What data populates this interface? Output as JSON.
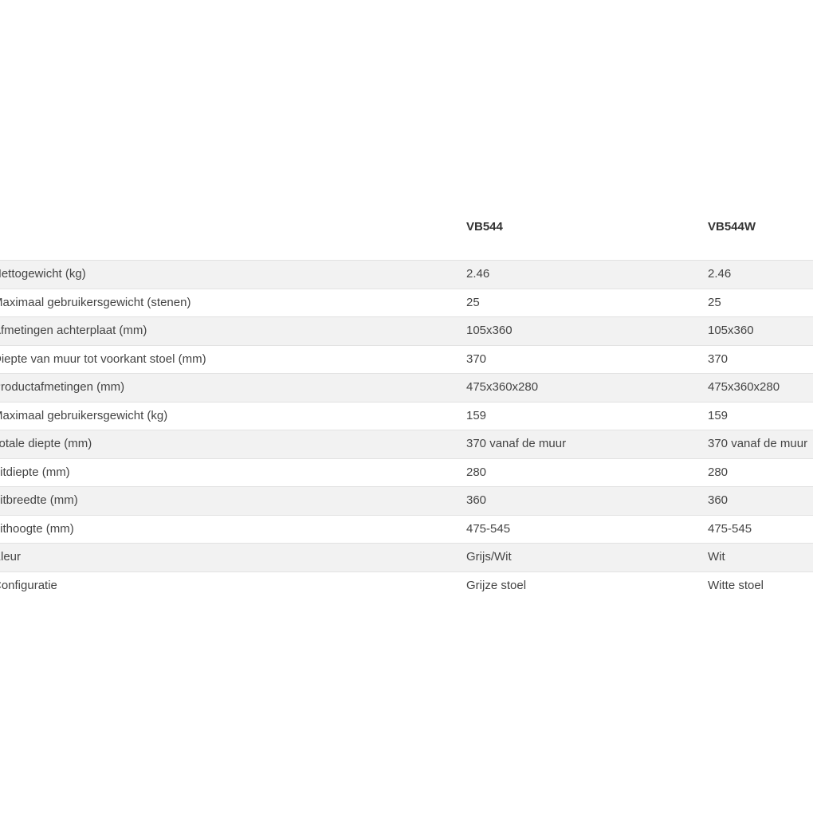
{
  "table": {
    "headers": [
      "",
      "VB544",
      "VB544W"
    ],
    "rows": [
      {
        "label": "Nettogewicht (kg)",
        "vb544": "2.46",
        "vb544w": "2.46"
      },
      {
        "label": "Maximaal gebruikersgewicht (stenen)",
        "vb544": "25",
        "vb544w": "25"
      },
      {
        "label": "Afmetingen achterplaat (mm)",
        "vb544": "105x360",
        "vb544w": "105x360"
      },
      {
        "label": "Diepte van muur tot voorkant stoel (mm)",
        "vb544": "370",
        "vb544w": "370"
      },
      {
        "label": "Productafmetingen (mm)",
        "vb544": "475x360x280",
        "vb544w": "475x360x280"
      },
      {
        "label": "Maximaal gebruikersgewicht (kg)",
        "vb544": "159",
        "vb544w": "159"
      },
      {
        "label": "Totale diepte (mm)",
        "vb544": "370 vanaf de muur",
        "vb544w": "370 vanaf de muur"
      },
      {
        "label": "Zitdiepte (mm)",
        "vb544": "280",
        "vb544w": "280"
      },
      {
        "label": "Zitbreedte (mm)",
        "vb544": "360",
        "vb544w": "360"
      },
      {
        "label": "Zithoogte (mm)",
        "vb544": "475-545",
        "vb544w": "475-545"
      },
      {
        "label": "Kleur",
        "vb544": "Grijs/Wit",
        "vb544w": "Wit"
      },
      {
        "label": "Configuratie",
        "vb544": "Grijze stoel",
        "vb544w": "Witte stoel"
      }
    ]
  }
}
